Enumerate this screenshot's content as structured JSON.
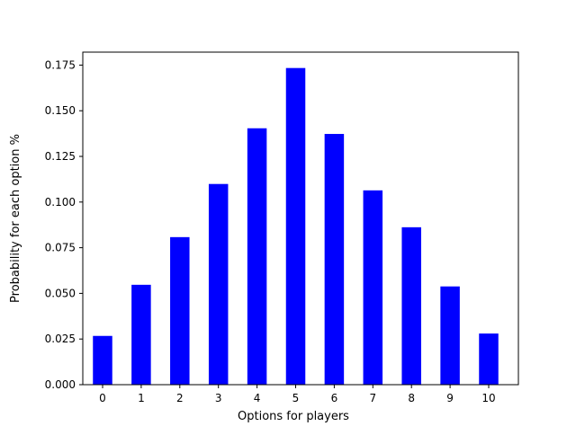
{
  "chart_data": {
    "type": "bar",
    "title": "",
    "xlabel": "Options for players",
    "ylabel": "Probability for each option %",
    "categories": [
      "0",
      "1",
      "2",
      "3",
      "4",
      "5",
      "6",
      "7",
      "8",
      "9",
      "10"
    ],
    "values": [
      0.0267,
      0.0547,
      0.0808,
      0.1099,
      0.1404,
      0.1734,
      0.1373,
      0.1064,
      0.0862,
      0.0538,
      0.028
    ],
    "yticks": [
      "0.000",
      "0.025",
      "0.050",
      "0.075",
      "0.100",
      "0.125",
      "0.150",
      "0.175"
    ],
    "ylim": [
      0,
      0.1821
    ],
    "grid": false,
    "legend": "none",
    "bar_color": "#0000ff"
  }
}
